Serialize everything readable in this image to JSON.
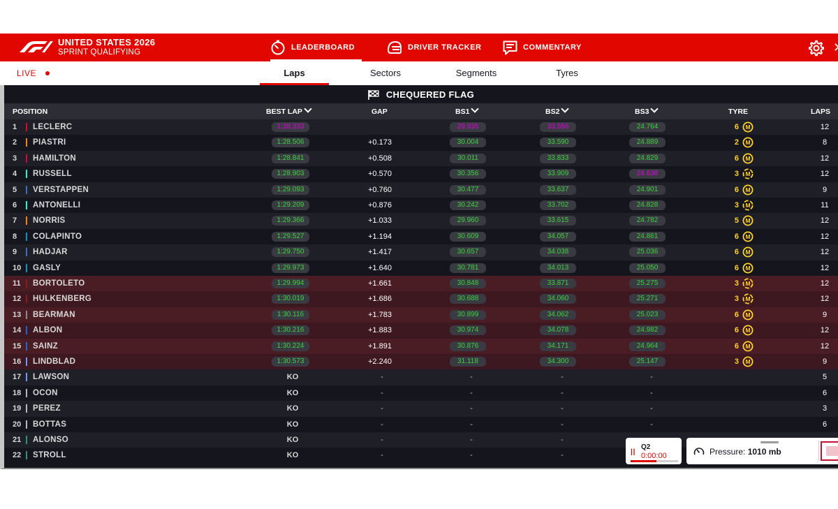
{
  "header": {
    "event_name": "UNITED STATES 2026",
    "session_name": "SPRINT QUALIFYING",
    "nav": [
      {
        "label": "LEADERBOARD",
        "icon": "stopwatch-icon"
      },
      {
        "label": "DRIVER TRACKER",
        "icon": "helmet-icon"
      },
      {
        "label": "COMMENTARY",
        "icon": "chat-icon"
      }
    ]
  },
  "subnav": {
    "live_label": "LIVE",
    "tabs": [
      {
        "label": "Laps"
      },
      {
        "label": "Sectors"
      },
      {
        "label": "Segments"
      },
      {
        "label": "Tyres"
      }
    ]
  },
  "board": {
    "flag_status": "CHEQUERED FLAG",
    "columns": {
      "position": "POSITION",
      "best_lap": "BEST LAP",
      "gap": "GAP",
      "bs1": "BS1",
      "bs2": "BS2",
      "bs3": "BS3",
      "tyre": "TYRE",
      "laps": "LAPS"
    },
    "rows": [
      {
        "pos": "1",
        "driver": "LECLERC",
        "team_color": "#e8002d",
        "best": "1:28.333",
        "best_c": "purple",
        "gap": "",
        "bs1": "29.935",
        "bs1_c": "purple",
        "bs2": "33.556",
        "bs2_c": "purple",
        "bs3": "24.764",
        "bs3_c": "green",
        "tyre_age": "6",
        "tyre": "M",
        "tyre_state": "used",
        "laps": "12"
      },
      {
        "pos": "2",
        "driver": "PIASTRI",
        "team_color": "#ff8000",
        "best": "1:28.506",
        "best_c": "green",
        "gap": "+0.173",
        "bs1": "30.004",
        "bs1_c": "green",
        "bs2": "33.590",
        "bs2_c": "green",
        "bs3": "24.889",
        "bs3_c": "green",
        "tyre_age": "2",
        "tyre": "M",
        "tyre_state": "used",
        "laps": "8"
      },
      {
        "pos": "3",
        "driver": "HAMILTON",
        "team_color": "#e8002d",
        "best": "1:28.841",
        "best_c": "green",
        "gap": "+0.508",
        "bs1": "30.011",
        "bs1_c": "green",
        "bs2": "33.833",
        "bs2_c": "green",
        "bs3": "24.829",
        "bs3_c": "green",
        "tyre_age": "6",
        "tyre": "M",
        "tyre_state": "used",
        "laps": "12"
      },
      {
        "pos": "4",
        "driver": "RUSSELL",
        "team_color": "#27f4d2",
        "best": "1:28.903",
        "best_c": "green",
        "gap": "+0.570",
        "bs1": "30.356",
        "bs1_c": "green",
        "bs2": "33.909",
        "bs2_c": "green",
        "bs3": "24.638",
        "bs3_c": "purple",
        "tyre_age": "3",
        "tyre": "M",
        "tyre_state": "new",
        "laps": "12"
      },
      {
        "pos": "5",
        "driver": "VERSTAPPEN",
        "team_color": "#3671c6",
        "best": "1:29.093",
        "best_c": "green",
        "gap": "+0.760",
        "bs1": "30.477",
        "bs1_c": "green",
        "bs2": "33.637",
        "bs2_c": "green",
        "bs3": "24.901",
        "bs3_c": "green",
        "tyre_age": "6",
        "tyre": "M",
        "tyre_state": "used",
        "laps": "9"
      },
      {
        "pos": "6",
        "driver": "ANTONELLI",
        "team_color": "#27f4d2",
        "best": "1:29.209",
        "best_c": "green",
        "gap": "+0.876",
        "bs1": "30.242",
        "bs1_c": "green",
        "bs2": "33.702",
        "bs2_c": "green",
        "bs3": "24.828",
        "bs3_c": "green",
        "tyre_age": "3",
        "tyre": "M",
        "tyre_state": "new",
        "laps": "11"
      },
      {
        "pos": "7",
        "driver": "NORRIS",
        "team_color": "#ff8000",
        "best": "1:29.366",
        "best_c": "green",
        "gap": "+1.033",
        "bs1": "29.960",
        "bs1_c": "green",
        "bs2": "33.615",
        "bs2_c": "green",
        "bs3": "24.782",
        "bs3_c": "green",
        "tyre_age": "5",
        "tyre": "M",
        "tyre_state": "used",
        "laps": "12"
      },
      {
        "pos": "8",
        "driver": "COLAPINTO",
        "team_color": "#0093cc",
        "best": "1:29.527",
        "best_c": "green",
        "gap": "+1.194",
        "bs1": "30.609",
        "bs1_c": "green",
        "bs2": "34.057",
        "bs2_c": "green",
        "bs3": "24.861",
        "bs3_c": "green",
        "tyre_age": "6",
        "tyre": "M",
        "tyre_state": "used",
        "laps": "12"
      },
      {
        "pos": "9",
        "driver": "HADJAR",
        "team_color": "#3671c6",
        "best": "1:29.750",
        "best_c": "green",
        "gap": "+1.417",
        "bs1": "30.657",
        "bs1_c": "green",
        "bs2": "34.038",
        "bs2_c": "green",
        "bs3": "25.036",
        "bs3_c": "green",
        "tyre_age": "6",
        "tyre": "M",
        "tyre_state": "used",
        "laps": "12"
      },
      {
        "pos": "10",
        "driver": "GASLY",
        "team_color": "#0093cc",
        "best": "1:29.973",
        "best_c": "green",
        "gap": "+1.640",
        "bs1": "30.781",
        "bs1_c": "green",
        "bs2": "34.013",
        "bs2_c": "green",
        "bs3": "25.050",
        "bs3_c": "green",
        "tyre_age": "6",
        "tyre": "M",
        "tyre_state": "used",
        "laps": "12"
      },
      {
        "pos": "11",
        "driver": "BORTOLETO",
        "team_color": "#8a1c1c",
        "best": "1:29.994",
        "best_c": "green",
        "gap": "+1.661",
        "bs1": "30.848",
        "bs1_c": "green",
        "bs2": "33.871",
        "bs2_c": "green",
        "bs3": "25.275",
        "bs3_c": "green",
        "tyre_age": "3",
        "tyre": "M",
        "tyre_state": "new",
        "laps": "12"
      },
      {
        "pos": "12",
        "driver": "HULKENBERG",
        "team_color": "#8a1c1c",
        "best": "1:30.019",
        "best_c": "green",
        "gap": "+1.686",
        "bs1": "30.688",
        "bs1_c": "green",
        "bs2": "34.060",
        "bs2_c": "green",
        "bs3": "25.271",
        "bs3_c": "green",
        "tyre_age": "3",
        "tyre": "M",
        "tyre_state": "new",
        "laps": "12"
      },
      {
        "pos": "13",
        "driver": "BEARMAN",
        "team_color": "#8c8c8c",
        "best": "1:30.116",
        "best_c": "green",
        "gap": "+1.783",
        "bs1": "30.899",
        "bs1_c": "green",
        "bs2": "34.062",
        "bs2_c": "green",
        "bs3": "25.023",
        "bs3_c": "green",
        "tyre_age": "6",
        "tyre": "M",
        "tyre_state": "used",
        "laps": "9"
      },
      {
        "pos": "14",
        "driver": "ALBON",
        "team_color": "#1868db",
        "best": "1:30.216",
        "best_c": "green",
        "gap": "+1.883",
        "bs1": "30.974",
        "bs1_c": "green",
        "bs2": "34.078",
        "bs2_c": "green",
        "bs3": "24.982",
        "bs3_c": "green",
        "tyre_age": "6",
        "tyre": "M",
        "tyre_state": "used",
        "laps": "12"
      },
      {
        "pos": "15",
        "driver": "SAINZ",
        "team_color": "#1868db",
        "best": "1:30.224",
        "best_c": "green",
        "gap": "+1.891",
        "bs1": "30.876",
        "bs1_c": "green",
        "bs2": "34.171",
        "bs2_c": "green",
        "bs3": "24.964",
        "bs3_c": "green",
        "tyre_age": "6",
        "tyre": "M",
        "tyre_state": "used",
        "laps": "12"
      },
      {
        "pos": "16",
        "driver": "LINDBLAD",
        "team_color": "#6c98ff",
        "best": "1:30.573",
        "best_c": "green",
        "gap": "+2.240",
        "bs1": "31.118",
        "bs1_c": "green",
        "bs2": "34.300",
        "bs2_c": "green",
        "bs3": "25.147",
        "bs3_c": "green",
        "tyre_age": "3",
        "tyre": "M",
        "tyre_state": "used",
        "laps": "9"
      },
      {
        "pos": "17",
        "driver": "LAWSON",
        "team_color": "#6c98ff",
        "ko": "KO",
        "laps": "5"
      },
      {
        "pos": "18",
        "driver": "OCON",
        "team_color": "#b6babd",
        "ko": "KO",
        "laps": "6"
      },
      {
        "pos": "19",
        "driver": "PEREZ",
        "team_color": "#b6babd",
        "ko": "KO",
        "laps": "3"
      },
      {
        "pos": "20",
        "driver": "BOTTAS",
        "team_color": "#b6babd",
        "ko": "KO",
        "laps": "6"
      },
      {
        "pos": "21",
        "driver": "ALONSO",
        "team_color": "#229971",
        "ko": "KO",
        "laps": ""
      },
      {
        "pos": "22",
        "driver": "STROLL",
        "team_color": "#229971",
        "ko": "KO",
        "laps": ""
      }
    ]
  },
  "session_widget": {
    "label": "Q2",
    "timer": "0:00:00",
    "pause_icon": "pause-icon"
  },
  "weather_widget": {
    "label": "Pressure:",
    "value": "1010 mb",
    "icon": "gauge-icon"
  },
  "colors": {
    "brand_red": "#e10600",
    "fastest_purple": "#e000e0",
    "personal_best_green": "#3bd23d",
    "medium_tyre_yellow": "#ffd12e"
  }
}
